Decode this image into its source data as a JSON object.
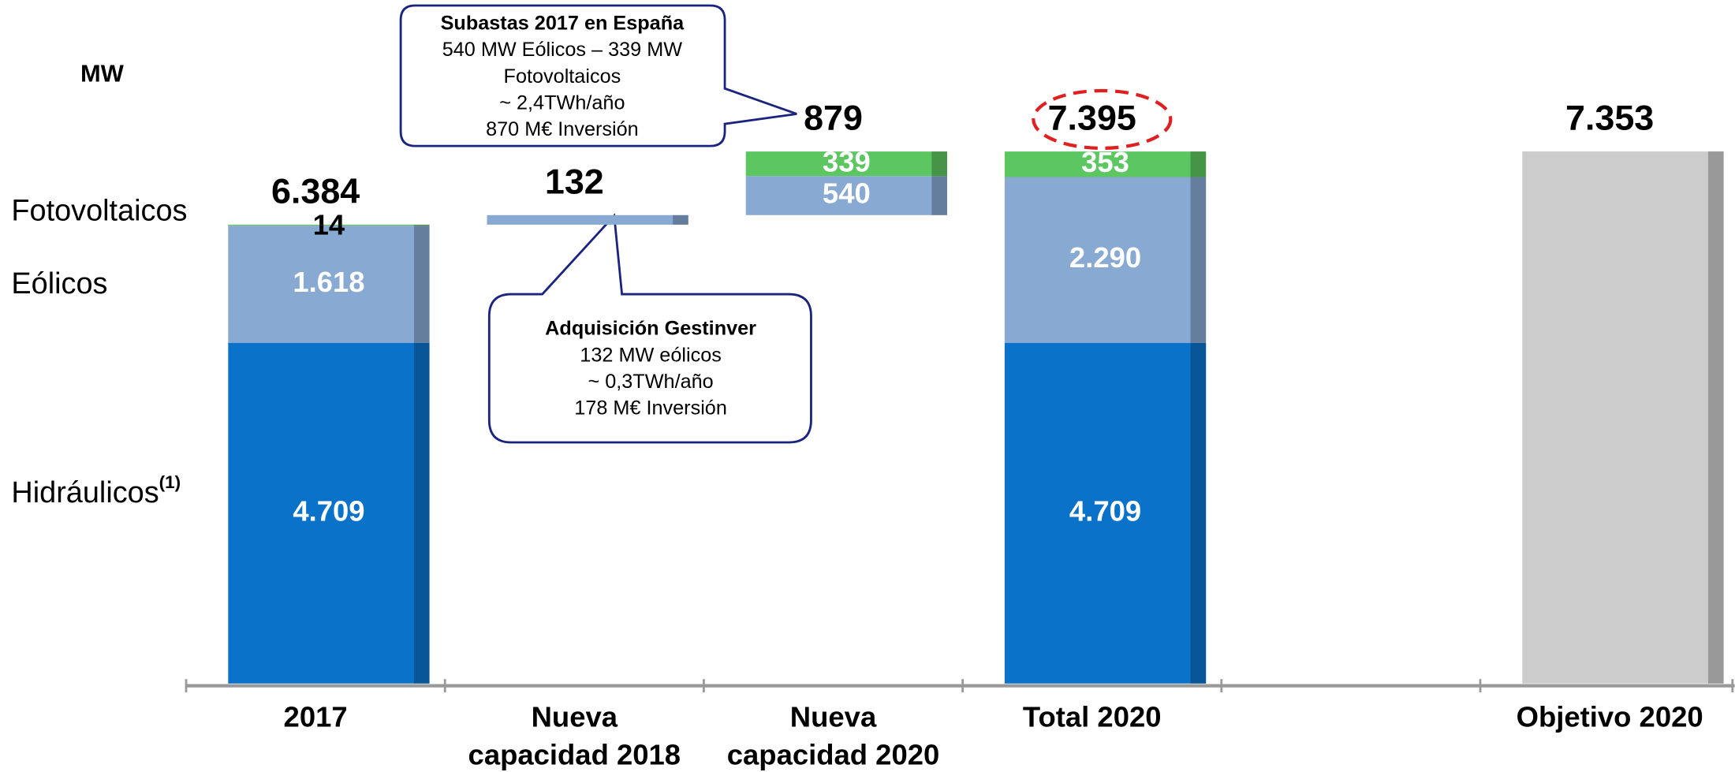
{
  "chart_data": {
    "type": "waterfall",
    "unit_label": "MW",
    "categories": [
      "2017",
      "Nueva capacidad 2018",
      "Nueva capacidad 2020",
      "Total 2020",
      null,
      "Objetivo 2020"
    ],
    "series": [
      {
        "name": "Hidráulicos",
        "name_note": "(1)",
        "color": "#0a72c8",
        "values": [
          4709,
          null,
          null,
          4709,
          null,
          null
        ],
        "value_labels": [
          "4.709",
          null,
          null,
          "4.709",
          null,
          null
        ]
      },
      {
        "name": "Eólicos",
        "color": "#88a9d2",
        "values": [
          1618,
          132,
          540,
          2290,
          null,
          null
        ],
        "value_labels": [
          "1.618",
          null,
          "540",
          "2.290",
          null,
          null
        ]
      },
      {
        "name": "Fotovoltaicos",
        "color": "#5cc660",
        "values": [
          14,
          null,
          339,
          353,
          null,
          null
        ],
        "value_labels": [
          "14",
          null,
          "339",
          "353",
          null,
          null
        ]
      }
    ],
    "target_values": [
      null,
      null,
      null,
      null,
      null,
      7353
    ],
    "target_color": "#cccccc",
    "totals": [
      6384,
      132,
      879,
      7395,
      null,
      7353
    ],
    "total_labels": [
      "6.384",
      "132",
      "879",
      "7.395",
      null,
      "7.353"
    ],
    "ylim": [
      0,
      9400
    ],
    "callouts": [
      {
        "title": "Subastas 2017 en España",
        "lines": [
          "540 MW Eólicos – 339 MW",
          "Fotovoltaicos",
          "~ 2,4TWh/año",
          "870 M€ Inversión"
        ]
      },
      {
        "title": "Adquisición Gestinver",
        "lines": [
          "132 MW eólicos",
          "~ 0,3TWh/año",
          "178 M€ Inversión"
        ]
      }
    ]
  }
}
